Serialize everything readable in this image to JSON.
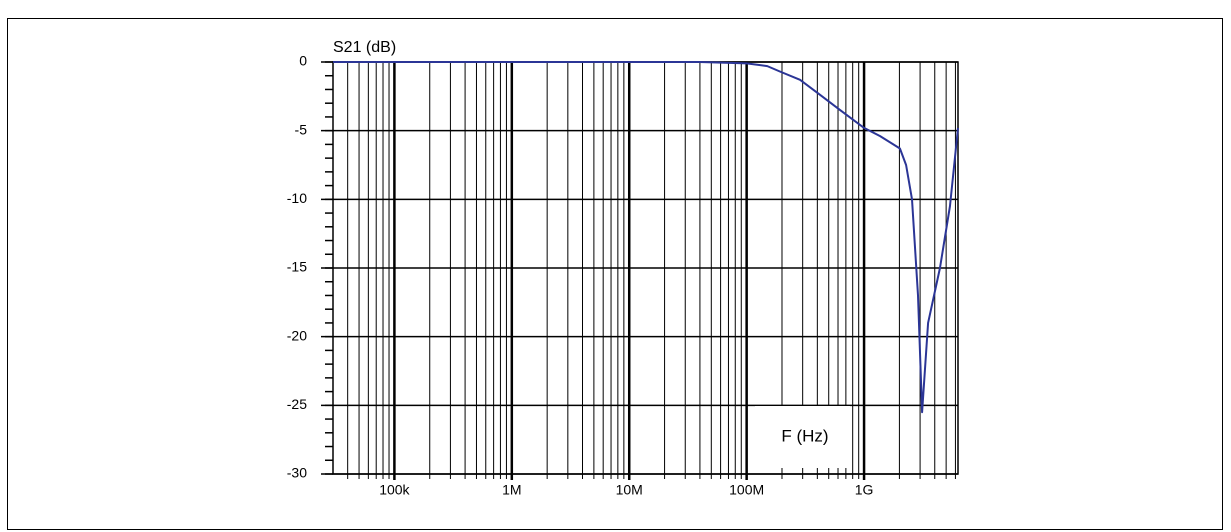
{
  "chart_data": {
    "type": "line",
    "y_label": "S21 (dB)",
    "x_label": "F (Hz)",
    "x_log": true,
    "grid": true,
    "minor_grid": true,
    "y_minor_ticks": true,
    "xlim": [
      30000,
      6310000000
    ],
    "ylim": [
      -30,
      0
    ],
    "xticks": [
      {
        "value": 100000,
        "label": "100k"
      },
      {
        "value": 1000000,
        "label": "1M"
      },
      {
        "value": 10000000,
        "label": "10M"
      },
      {
        "value": 100000000,
        "label": "100M"
      },
      {
        "value": 1000000000,
        "label": "1G"
      }
    ],
    "yticks": [
      0,
      -5,
      -10,
      -15,
      -20,
      -25,
      -30
    ],
    "series": [
      {
        "color": "#2b3596",
        "x": [
          30000,
          40000000,
          100000000,
          150000000,
          193000000,
          285000000,
          423000000,
          625000000,
          1000000000,
          1370000000,
          2020000000,
          2280000000,
          2560000000,
          2880000000,
          3120000000,
          3510000000,
          4430000000,
          5390000000,
          6310000000
        ],
        "values": [
          0,
          0,
          -0.1,
          -0.3,
          -0.7,
          -1.3,
          -2.4,
          -3.5,
          -4.8,
          -5.4,
          -6.3,
          -7.5,
          -10,
          -17,
          -25.5,
          -19,
          -15,
          -10.5,
          -4.8
        ]
      }
    ]
  }
}
